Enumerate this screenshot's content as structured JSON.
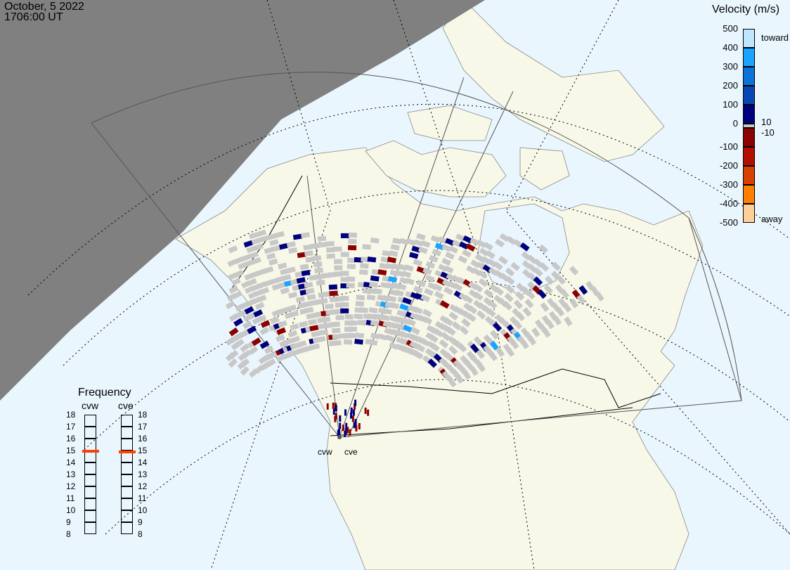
{
  "header": {
    "date": "October, 5 2022",
    "time": "1706:00 UT"
  },
  "colorbar": {
    "title": "Velocity (m/s)",
    "ticks": [
      "500",
      "400",
      "300",
      "200",
      "100",
      "0",
      "-100",
      "-200",
      "-300",
      "-400",
      "-500"
    ],
    "inner_labels": [
      "10",
      "-10"
    ],
    "toward_label": "toward",
    "away_label": "away",
    "colors": [
      "#bfe6ff",
      "#1aa3ff",
      "#0a73d9",
      "#0747b3",
      "#00007f",
      "#c8c8c8",
      "#8b0000",
      "#b30f00",
      "#d94000",
      "#ff8000",
      "#ffcf99"
    ]
  },
  "frequency": {
    "title": "Frequency",
    "radars": [
      {
        "name": "cvw",
        "freq_mhz": 14.95
      },
      {
        "name": "cve",
        "freq_mhz": 14.9
      }
    ],
    "scale": [
      "18",
      "17",
      "16",
      "15",
      "14",
      "13",
      "12",
      "11",
      "10",
      "9",
      "8"
    ],
    "marker_color": "#ff4000"
  },
  "map": {
    "radar_labels": [
      "cvw",
      "cve"
    ],
    "ocean_color": "#eaf6fe",
    "land_color": "#f8f8e8",
    "night_color": "#808080",
    "ground_scatter_color": "#c8c8c8"
  }
}
